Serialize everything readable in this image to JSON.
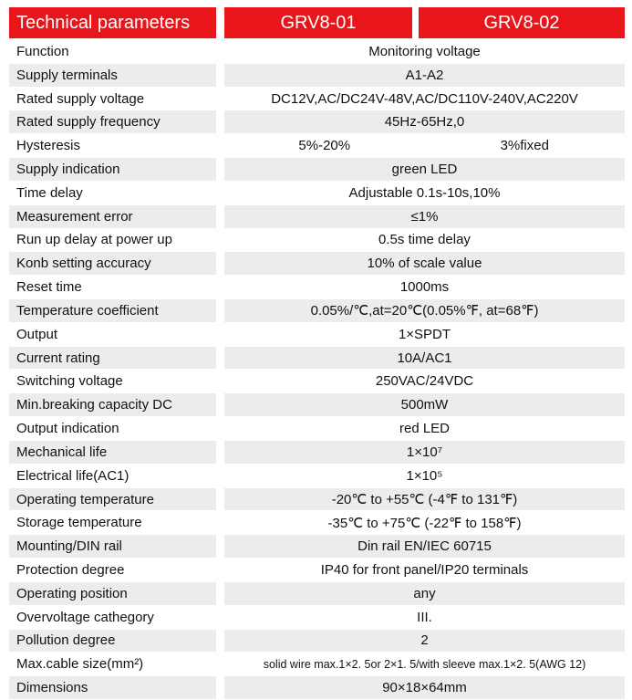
{
  "header": [
    "Technical parameters",
    "GRV8-01",
    "GRV8-02"
  ],
  "rows": [
    {
      "label": "Function",
      "values": [
        "Monitoring voltage"
      ]
    },
    {
      "label": "Supply terminals",
      "values": [
        "A1-A2"
      ]
    },
    {
      "label": "Rated supply voltage",
      "values": [
        "DC12V,AC/DC24V-48V,AC/DC110V-240V,AC220V"
      ]
    },
    {
      "label": "Rated supply frequency",
      "values": [
        "45Hz-65Hz,0"
      ]
    },
    {
      "label": "Hysteresis",
      "values": [
        "5%-20%",
        "3%fixed"
      ]
    },
    {
      "label": "Supply indication",
      "values": [
        "green LED"
      ]
    },
    {
      "label": "Time delay",
      "values": [
        "Adjustable 0.1s-10s,10%"
      ]
    },
    {
      "label": "Measurement error",
      "values": [
        "≤1%"
      ]
    },
    {
      "label": "Run up delay at power up",
      "values": [
        "0.5s time delay"
      ]
    },
    {
      "label": "Konb setting accuracy",
      "values": [
        "10% of scale value"
      ]
    },
    {
      "label": "Reset time",
      "values": [
        "1000ms"
      ]
    },
    {
      "label": "Temperature coefficient",
      "values": [
        "0.05%/℃,at=20℃(0.05%℉,  at=68℉)"
      ]
    },
    {
      "label": "Output",
      "values": [
        "1×SPDT"
      ]
    },
    {
      "label": "Current rating",
      "values": [
        "10A/AC1"
      ]
    },
    {
      "label": "Switching voltage",
      "values": [
        "250VAC/24VDC"
      ]
    },
    {
      "label": "Min.breaking capacity DC",
      "values": [
        "500mW"
      ]
    },
    {
      "label": "Output indication",
      "values": [
        "red LED"
      ]
    },
    {
      "label": "Mechanical life",
      "values": [
        "1×10⁷"
      ]
    },
    {
      "label": "Electrical life(AC1)",
      "values": [
        "1×10⁵"
      ]
    },
    {
      "label": "Operating temperature",
      "values": [
        "-20℃ to +55℃ (-4℉ to 131℉)"
      ]
    },
    {
      "label": "Storage temperature",
      "values": [
        "-35℃ to +75℃ (-22℉ to 158℉)"
      ]
    },
    {
      "label": "Mounting/DIN rail",
      "values": [
        "Din rail EN/IEC 60715"
      ]
    },
    {
      "label": "Protection degree",
      "values": [
        "IP40 for front panel/IP20 terminals"
      ]
    },
    {
      "label": "Operating position",
      "values": [
        "any"
      ]
    },
    {
      "label": "Overvoltage cathegory",
      "values": [
        "III."
      ]
    },
    {
      "label": "Pollution degree",
      "values": [
        "2"
      ]
    },
    {
      "label": "Max.cable size(mm²)",
      "values": [
        "solid wire max.1×2. 5or 2×1. 5/with sleeve max.1×2. 5(AWG 12)"
      ]
    },
    {
      "label": "Dimensions",
      "values": [
        "90×18×64mm"
      ]
    }
  ]
}
